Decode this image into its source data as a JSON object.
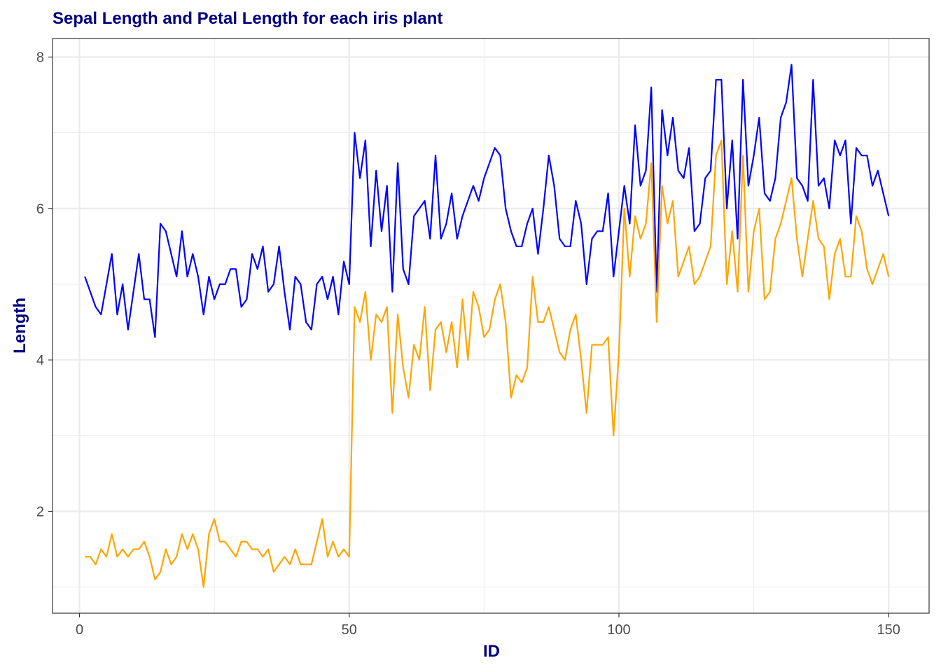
{
  "chart_data": {
    "type": "line",
    "title": "Sepal Length and Petal Length for each iris plant",
    "xlabel": "ID",
    "ylabel": "Length",
    "xlim": [
      -5,
      157.5
    ],
    "ylim": [
      0.655,
      8.245
    ],
    "x_ticks": [
      0,
      50,
      100,
      150
    ],
    "x_tick_labels": [
      "0",
      "50",
      "100",
      "150"
    ],
    "y_ticks": [
      2,
      4,
      6,
      8
    ],
    "y_tick_labels": [
      "2",
      "4",
      "6",
      "8"
    ],
    "x_minor_ticks": [
      25,
      75,
      125
    ],
    "y_minor_ticks": [
      1,
      3,
      5,
      7
    ],
    "grid": true,
    "legend": "none",
    "colors": {
      "title": "#000080",
      "axis_label": "#000080",
      "panel_border": "#333333",
      "grid": "#ebebeb",
      "tick": "#333333"
    },
    "series": [
      {
        "name": "Sepal.Length",
        "color": "#0000ff",
        "values": [
          5.1,
          4.9,
          4.7,
          4.6,
          5.0,
          5.4,
          4.6,
          5.0,
          4.4,
          4.9,
          5.4,
          4.8,
          4.8,
          4.3,
          5.8,
          5.7,
          5.4,
          5.1,
          5.7,
          5.1,
          5.4,
          5.1,
          4.6,
          5.1,
          4.8,
          5.0,
          5.0,
          5.2,
          5.2,
          4.7,
          4.8,
          5.4,
          5.2,
          5.5,
          4.9,
          5.0,
          5.5,
          4.9,
          4.4,
          5.1,
          5.0,
          4.5,
          4.4,
          5.0,
          5.1,
          4.8,
          5.1,
          4.6,
          5.3,
          5.0,
          7.0,
          6.4,
          6.9,
          5.5,
          6.5,
          5.7,
          6.3,
          4.9,
          6.6,
          5.2,
          5.0,
          5.9,
          6.0,
          6.1,
          5.6,
          6.7,
          5.6,
          5.8,
          6.2,
          5.6,
          5.9,
          6.1,
          6.3,
          6.1,
          6.4,
          6.6,
          6.8,
          6.7,
          6.0,
          5.7,
          5.5,
          5.5,
          5.8,
          6.0,
          5.4,
          6.0,
          6.7,
          6.3,
          5.6,
          5.5,
          5.5,
          6.1,
          5.8,
          5.0,
          5.6,
          5.7,
          5.7,
          6.2,
          5.1,
          5.7,
          6.3,
          5.8,
          7.1,
          6.3,
          6.5,
          7.6,
          4.9,
          7.3,
          6.7,
          7.2,
          6.5,
          6.4,
          6.8,
          5.7,
          5.8,
          6.4,
          6.5,
          7.7,
          7.7,
          6.0,
          6.9,
          5.6,
          7.7,
          6.3,
          6.7,
          7.2,
          6.2,
          6.1,
          6.4,
          7.2,
          7.4,
          7.9,
          6.4,
          6.3,
          6.1,
          7.7,
          6.3,
          6.4,
          6.0,
          6.9,
          6.7,
          6.9,
          5.8,
          6.8,
          6.7,
          6.7,
          6.3,
          6.5,
          6.2,
          5.9
        ]
      },
      {
        "name": "Petal.Length",
        "color": "#ffa500",
        "values": [
          1.4,
          1.4,
          1.3,
          1.5,
          1.4,
          1.7,
          1.4,
          1.5,
          1.4,
          1.5,
          1.5,
          1.6,
          1.4,
          1.1,
          1.2,
          1.5,
          1.3,
          1.4,
          1.7,
          1.5,
          1.7,
          1.5,
          1.0,
          1.7,
          1.9,
          1.6,
          1.6,
          1.5,
          1.4,
          1.6,
          1.6,
          1.5,
          1.5,
          1.4,
          1.5,
          1.2,
          1.3,
          1.4,
          1.3,
          1.5,
          1.3,
          1.3,
          1.3,
          1.6,
          1.9,
          1.4,
          1.6,
          1.4,
          1.5,
          1.4,
          4.7,
          4.5,
          4.9,
          4.0,
          4.6,
          4.5,
          4.7,
          3.3,
          4.6,
          3.9,
          3.5,
          4.2,
          4.0,
          4.7,
          3.6,
          4.4,
          4.5,
          4.1,
          4.5,
          3.9,
          4.8,
          4.0,
          4.9,
          4.7,
          4.3,
          4.4,
          4.8,
          5.0,
          4.5,
          3.5,
          3.8,
          3.7,
          3.9,
          5.1,
          4.5,
          4.5,
          4.7,
          4.4,
          4.1,
          4.0,
          4.4,
          4.6,
          4.0,
          3.3,
          4.2,
          4.2,
          4.2,
          4.3,
          3.0,
          4.1,
          6.0,
          5.1,
          5.9,
          5.6,
          5.8,
          6.6,
          4.5,
          6.3,
          5.8,
          6.1,
          5.1,
          5.3,
          5.5,
          5.0,
          5.1,
          5.3,
          5.5,
          6.7,
          6.9,
          5.0,
          5.7,
          4.9,
          6.7,
          4.9,
          5.7,
          6.0,
          4.8,
          4.9,
          5.6,
          5.8,
          6.1,
          6.4,
          5.6,
          5.1,
          5.6,
          6.1,
          5.6,
          5.5,
          4.8,
          5.4,
          5.6,
          5.1,
          5.1,
          5.9,
          5.7,
          5.2,
          5.0,
          5.2,
          5.4,
          5.1
        ]
      }
    ]
  }
}
